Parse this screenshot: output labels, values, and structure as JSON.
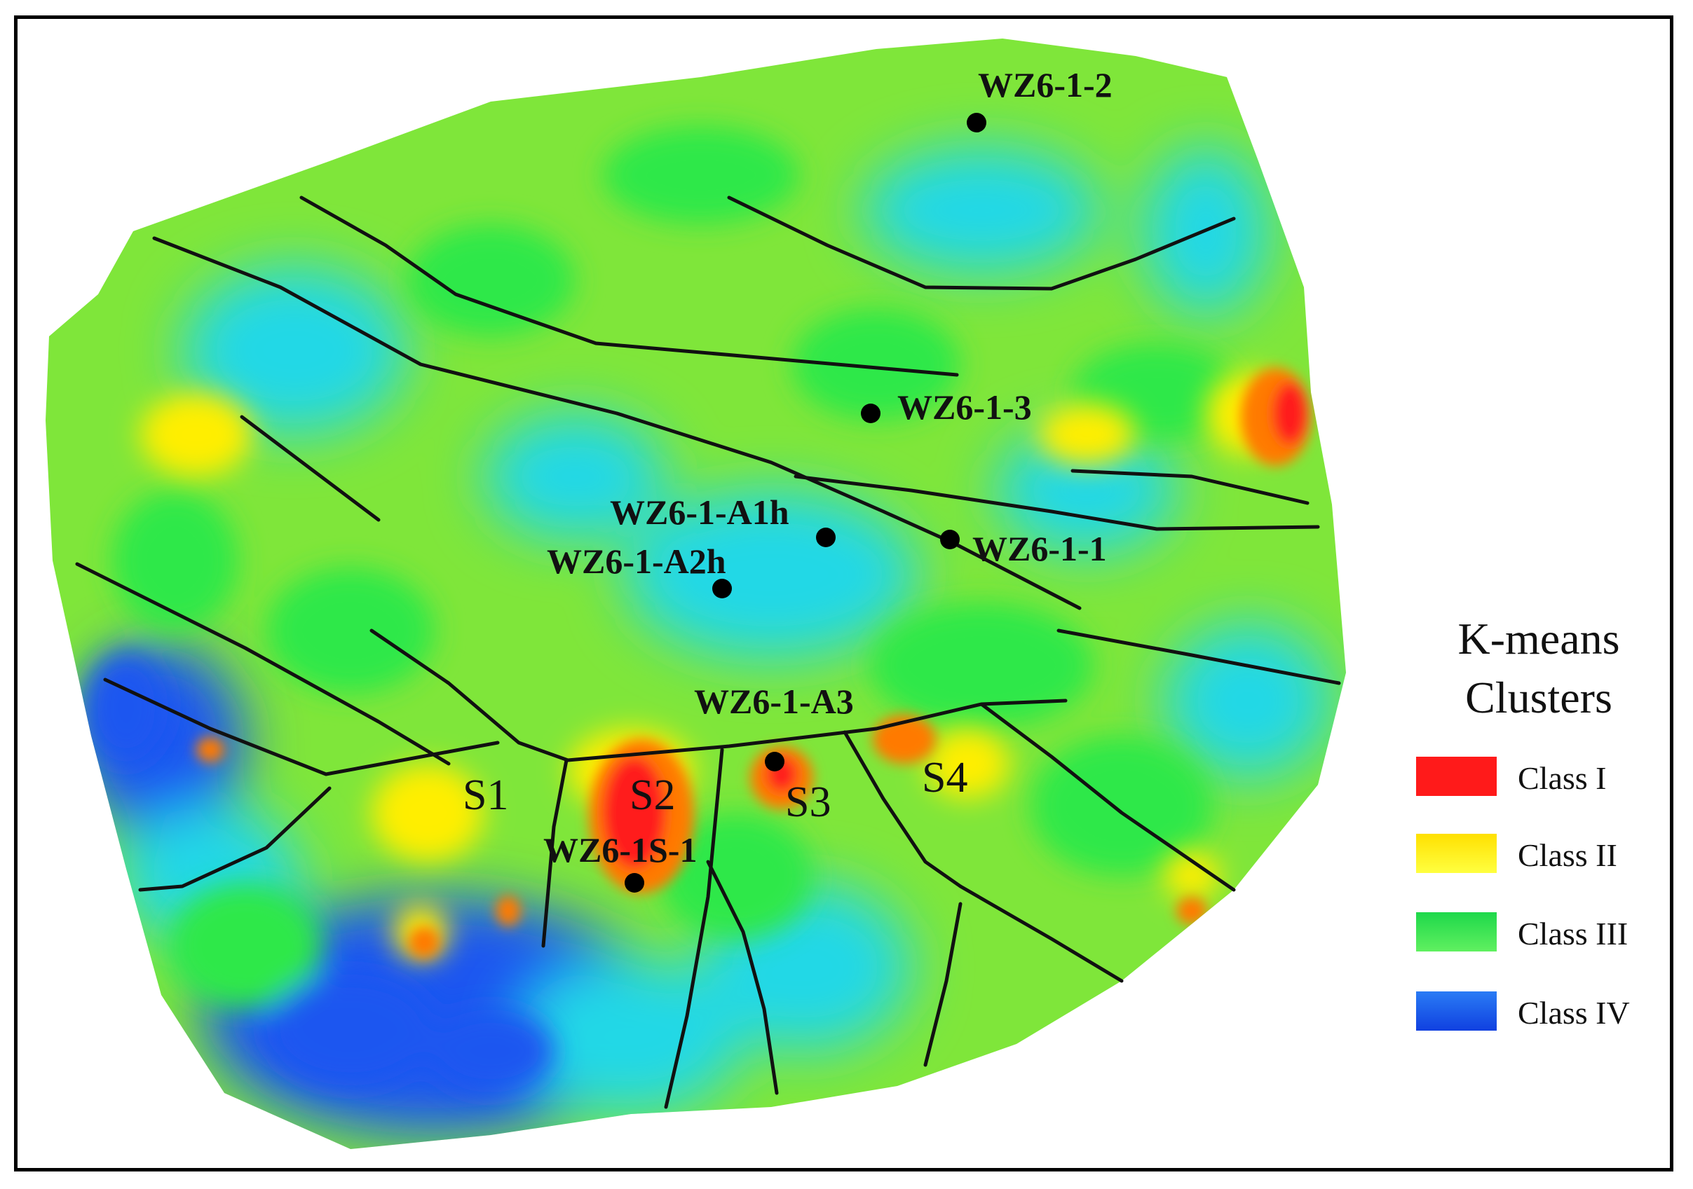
{
  "wells": [
    {
      "name": "WZ6-1-2"
    },
    {
      "name": "WZ6-1-3"
    },
    {
      "name": "WZ6-1-A1h"
    },
    {
      "name": "WZ6-1-A2h"
    },
    {
      "name": "WZ6-1-1"
    },
    {
      "name": "WZ6-1-A3"
    },
    {
      "name": "WZ6-1S-1"
    }
  ],
  "segments": [
    "S1",
    "S2",
    "S3",
    "S4"
  ],
  "legend": {
    "title": "K-means Clusters",
    "items": [
      {
        "label": "Class I",
        "color": "#ff1a1a"
      },
      {
        "label": "Class II",
        "color": "#ffee00"
      },
      {
        "label": "Class III",
        "color": "#2ee84a"
      },
      {
        "label": "Class IV",
        "color": "#1a56f0"
      }
    ]
  },
  "colors": {
    "class_i": "#ff1a1a",
    "class_ii": "#ffee00",
    "class_iii": "#2ee84a",
    "class_iv": "#1a56f0",
    "cyan": "#22d8e6",
    "fault_line": "#111111"
  }
}
